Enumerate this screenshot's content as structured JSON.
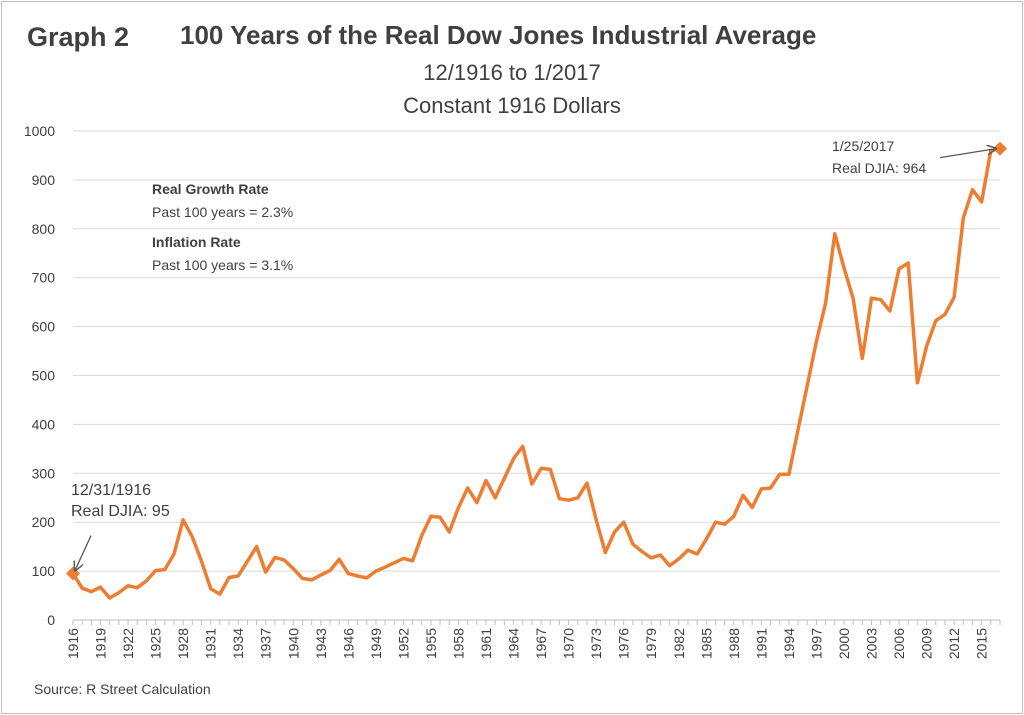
{
  "graph_label": "Graph 2",
  "source": "Source: R Street Calculation",
  "annotations": {
    "growth_heading": "Real Growth Rate",
    "growth_text": "Past 100 years = 2.3%",
    "inflation_heading": "Inflation Rate",
    "inflation_text": "Past 100 years = 3.1%",
    "start_date": "12/31/1916",
    "start_value": "Real DJIA: 95",
    "end_date": "1/25/2017",
    "end_value": "Real DJIA: 964"
  },
  "colors": {
    "line": "#ED7D31",
    "grid": "#d9d9d9",
    "text": "#404040",
    "arrow": "#595959"
  },
  "chart_data": {
    "type": "line",
    "title": "100 Years of the Real Dow Jones Industrial Average",
    "subtitle": [
      "12/1916 to 1/2017",
      "Constant 1916 Dollars"
    ],
    "xlabel": "",
    "ylabel": "",
    "ylim": [
      0,
      1000
    ],
    "yticks": [
      0,
      100,
      200,
      300,
      400,
      500,
      600,
      700,
      800,
      900,
      1000
    ],
    "xticks": [
      "1916",
      "1919",
      "1922",
      "1925",
      "1928",
      "1931",
      "1934",
      "1937",
      "1940",
      "1943",
      "1946",
      "1949",
      "1952",
      "1955",
      "1958",
      "1961",
      "1964",
      "1967",
      "1970",
      "1973",
      "1976",
      "1979",
      "1982",
      "1985",
      "1988",
      "1991",
      "1994",
      "1997",
      "2000",
      "2003",
      "2006",
      "2009",
      "2012",
      "2015"
    ],
    "grid": true,
    "series": [
      {
        "x": [
          1916,
          1917,
          1918,
          1919,
          1920,
          1921,
          1922,
          1923,
          1924,
          1925,
          1926,
          1927,
          1928,
          1929,
          1930,
          1931,
          1932,
          1933,
          1934,
          1935,
          1936,
          1937,
          1938,
          1939,
          1940,
          1941,
          1942,
          1943,
          1944,
          1945,
          1946,
          1947,
          1948,
          1949,
          1950,
          1951,
          1952,
          1953,
          1954,
          1955,
          1956,
          1957,
          1958,
          1959,
          1960,
          1961,
          1962,
          1963,
          1964,
          1965,
          1966,
          1967,
          1968,
          1969,
          1970,
          1971,
          1972,
          1973,
          1974,
          1975,
          1976,
          1977,
          1978,
          1979,
          1980,
          1981,
          1982,
          1983,
          1984,
          1985,
          1986,
          1987,
          1988,
          1989,
          1990,
          1991,
          1992,
          1993,
          1994,
          1995,
          1996,
          1997,
          1998,
          1999,
          2000,
          2001,
          2002,
          2003,
          2004,
          2005,
          2006,
          2007,
          2008,
          2009,
          2010,
          2011,
          2012,
          2013,
          2014,
          2015,
          2016,
          2017
        ],
        "values": [
          95,
          65,
          58,
          67,
          45,
          56,
          70,
          66,
          80,
          101,
          103,
          135,
          205,
          170,
          120,
          64,
          53,
          87,
          90,
          120,
          150,
          98,
          128,
          123,
          105,
          85,
          82,
          92,
          101,
          124,
          95,
          90,
          86,
          100,
          108,
          117,
          126,
          121,
          173,
          212,
          210,
          180,
          230,
          270,
          240,
          285,
          250,
          290,
          330,
          355,
          278,
          310,
          308,
          248,
          245,
          250,
          280,
          205,
          138,
          180,
          200,
          155,
          140,
          127,
          133,
          111,
          125,
          143,
          135,
          165,
          200,
          196,
          212,
          255,
          230,
          268,
          270,
          298,
          298,
          390,
          480,
          570,
          648,
          790,
          720,
          658,
          535,
          658,
          655,
          632,
          718,
          730,
          485,
          560,
          612,
          625,
          660,
          822,
          880,
          855,
          960,
          964
        ]
      }
    ]
  }
}
